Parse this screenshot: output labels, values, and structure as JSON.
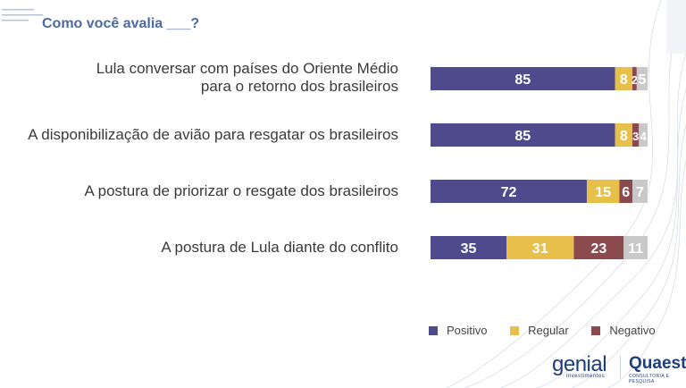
{
  "header": {
    "title": "Como você avalia ___?"
  },
  "rows": [
    {
      "label_lines": [
        "Lula conversar com países do Oriente Médio",
        "para o retorno dos brasileiros"
      ]
    },
    {
      "label_lines": [
        "A disponibilização de avião para resgatar os brasileiros"
      ]
    },
    {
      "label_lines": [
        "A postura de priorizar o resgate dos brasileiros"
      ]
    },
    {
      "label_lines": [
        "A postura de Lula diante do conflito"
      ]
    }
  ],
  "chart_data": {
    "type": "bar",
    "orientation": "horizontal",
    "stacked": true,
    "categories": [
      "Lula conversar com países do Oriente Médio para o retorno dos brasileiros",
      "A disponibilização de avião para resgatar os brasileiros",
      "A postura de priorizar o resgate dos brasileiros",
      "A postura de Lula diante do conflito"
    ],
    "series": [
      {
        "name": "Positivo",
        "color": "#4e4a8c",
        "values": [
          85,
          85,
          72,
          35
        ]
      },
      {
        "name": "Regular",
        "color": "#e6c04a",
        "values": [
          8,
          8,
          15,
          31
        ]
      },
      {
        "name": "Negativo",
        "color": "#8b4a4e",
        "values": [
          2,
          3,
          6,
          23
        ]
      },
      {
        "name": "",
        "color": "#c9c9c9",
        "values": [
          5,
          4,
          7,
          11
        ]
      }
    ],
    "xlim": [
      0,
      100
    ],
    "legend_position": "bottom-right",
    "grid": false
  },
  "legend": {
    "items": [
      {
        "label": "Positivo",
        "color": "#4e4a8c"
      },
      {
        "label": "Regular",
        "color": "#e6c04a"
      },
      {
        "label": "Negativo",
        "color": "#8b4a4e"
      }
    ]
  },
  "logos": {
    "genial": "genial",
    "genial_sub": "investimentos",
    "quaest": "Quaest",
    "quaest_sub": "CONSULTORIA E PESQUISA"
  }
}
